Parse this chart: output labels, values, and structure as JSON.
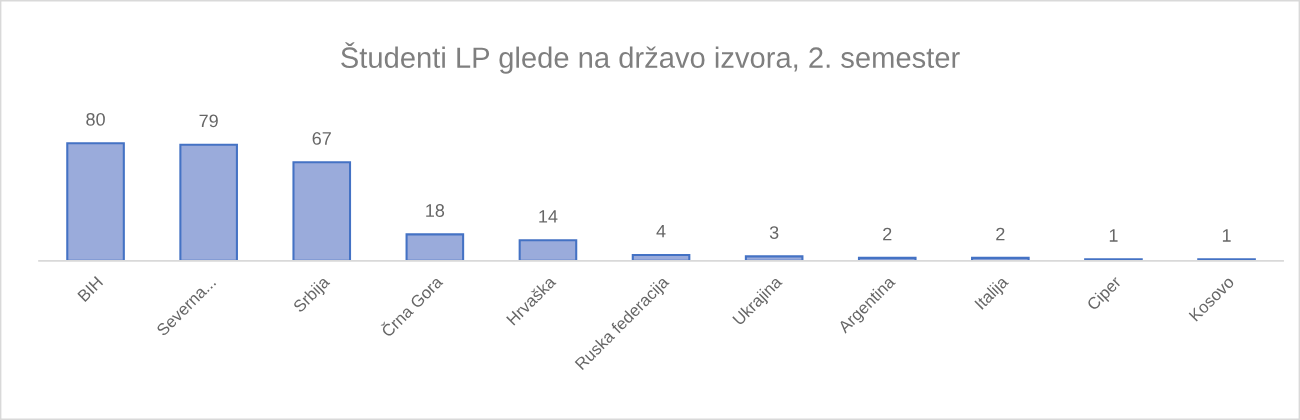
{
  "chart_data": {
    "type": "bar",
    "title": "Študenti LP glede na državo izvora, 2. semester",
    "categories": [
      "BIH",
      "Severna...",
      "Srbija",
      "Črna Gora",
      "Hrvaška",
      "Ruska federacija",
      "Ukrajina",
      "Argentina",
      "Italija",
      "Ciper",
      "Kosovo"
    ],
    "values": [
      80,
      79,
      67,
      18,
      14,
      4,
      3,
      2,
      2,
      1,
      1
    ],
    "color": "#9aabdb",
    "data_labels": true
  }
}
